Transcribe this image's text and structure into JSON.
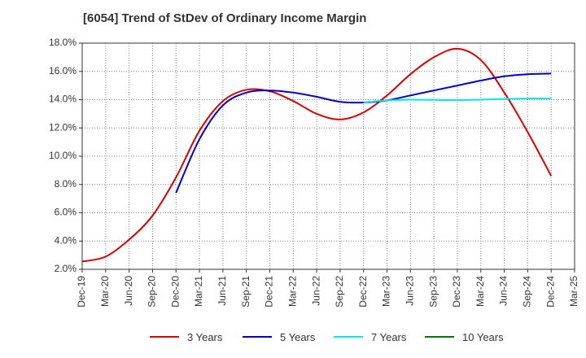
{
  "chart_data": {
    "type": "line",
    "title": "[6054]  Trend of StDev of Ordinary Income Margin",
    "xlabel": "",
    "ylabel": "",
    "x_ticks": [
      "Dec-19",
      "Mar-20",
      "Jun-20",
      "Sep-20",
      "Dec-20",
      "Mar-21",
      "Jun-21",
      "Sep-21",
      "Dec-21",
      "Mar-22",
      "Jun-22",
      "Sep-22",
      "Dec-22",
      "Mar-23",
      "Jun-23",
      "Sep-23",
      "Dec-23",
      "Mar-24",
      "Jun-24",
      "Sep-24",
      "Dec-24",
      "Mar-25"
    ],
    "y_ticks": [
      "2.0%",
      "4.0%",
      "6.0%",
      "8.0%",
      "10.0%",
      "12.0%",
      "14.0%",
      "16.0%",
      "18.0%"
    ],
    "ylim": [
      2.0,
      18.0
    ],
    "grid": true,
    "legend_position": "bottom",
    "series": [
      {
        "name": "3 Years",
        "color": "#dd0000",
        "x": [
          "Dec-19",
          "Mar-20",
          "Jun-20",
          "Sep-20",
          "Dec-20",
          "Mar-21",
          "Jun-21",
          "Sep-21",
          "Dec-21",
          "Mar-22",
          "Jun-22",
          "Sep-22",
          "Dec-22",
          "Mar-23",
          "Jun-23",
          "Sep-23",
          "Dec-23",
          "Mar-24",
          "Jun-24",
          "Sep-24",
          "Dec-24"
        ],
        "values": [
          2.55,
          2.9,
          4.1,
          5.8,
          8.5,
          11.8,
          13.9,
          14.7,
          14.6,
          13.9,
          13.0,
          12.6,
          13.1,
          14.3,
          15.8,
          17.0,
          17.6,
          16.8,
          14.5,
          11.7,
          8.6
        ]
      },
      {
        "name": "5 Years",
        "color": "#0000cc",
        "x": [
          "Dec-20",
          "Mar-21",
          "Jun-21",
          "Sep-21",
          "Dec-21",
          "Mar-22",
          "Jun-22",
          "Sep-22",
          "Dec-22",
          "Mar-23",
          "Jun-23",
          "Sep-23",
          "Dec-23",
          "Mar-24",
          "Jun-24",
          "Sep-24",
          "Dec-24"
        ],
        "values": [
          7.4,
          11.2,
          13.6,
          14.5,
          14.65,
          14.5,
          14.2,
          13.85,
          13.8,
          13.95,
          14.3,
          14.65,
          15.0,
          15.35,
          15.65,
          15.8,
          15.85
        ]
      },
      {
        "name": "7 Years",
        "color": "#00e5ee",
        "x": [
          "Dec-22",
          "Mar-23",
          "Jun-23",
          "Sep-23",
          "Dec-23",
          "Mar-24",
          "Jun-24",
          "Sep-24",
          "Dec-24"
        ],
        "values": [
          13.8,
          13.95,
          14.0,
          13.98,
          13.97,
          14.0,
          14.05,
          14.08,
          14.08
        ]
      },
      {
        "name": "10 Years",
        "color": "#007700",
        "x": [],
        "values": []
      }
    ]
  }
}
